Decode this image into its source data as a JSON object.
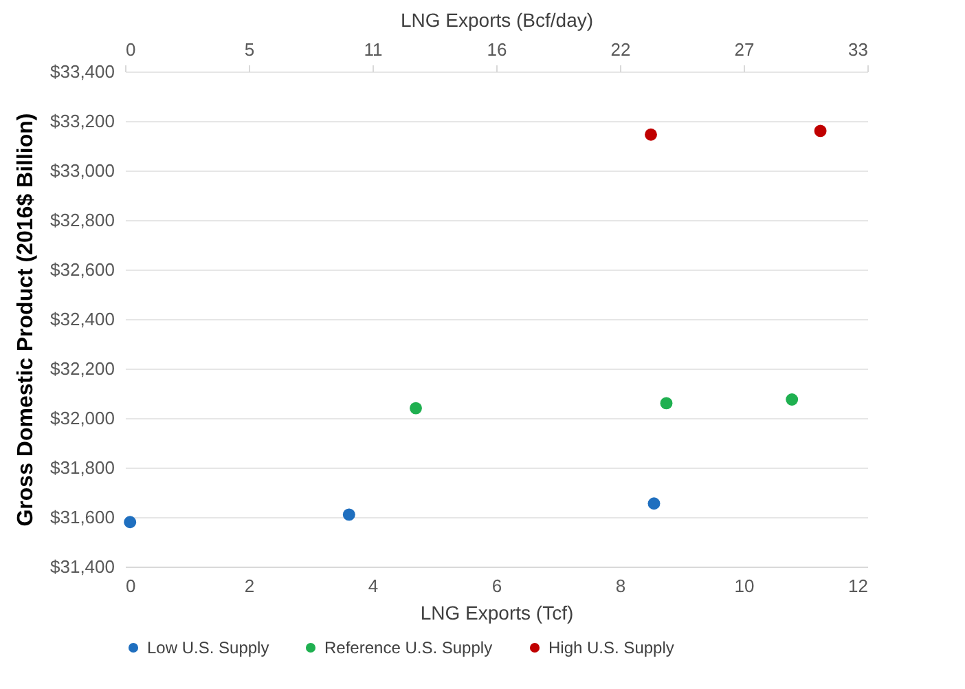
{
  "chart_data": {
    "type": "scatter",
    "xlabel": "LNG Exports (Tcf)",
    "ylabel": "Gross Domestic Product (2016$ Billion)",
    "x2label": "LNG Exports (Bcf/day)",
    "xlim": [
      0,
      12
    ],
    "xticks": [
      0,
      2,
      4,
      6,
      8,
      10,
      12
    ],
    "x2lim": [
      0,
      32.88
    ],
    "x2ticks": [
      0,
      {
        "value": 5.48,
        "label": "5"
      },
      {
        "value": 10.96,
        "label": "11"
      },
      {
        "value": 16.44,
        "label": "16"
      },
      {
        "value": 21.92,
        "label": "22"
      },
      {
        "value": 27.4,
        "label": "27"
      },
      {
        "value": 32.88,
        "label": "33"
      }
    ],
    "ylim": [
      31400,
      33400
    ],
    "yticks": [
      {
        "value": 31400,
        "label": "$31,400"
      },
      {
        "value": 31600,
        "label": "$31,600"
      },
      {
        "value": 31800,
        "label": "$31,800"
      },
      {
        "value": 32000,
        "label": "$32,000"
      },
      {
        "value": 32200,
        "label": "$32,200"
      },
      {
        "value": 32400,
        "label": "$32,400"
      },
      {
        "value": 32600,
        "label": "$32,600"
      },
      {
        "value": 32800,
        "label": "$32,800"
      },
      {
        "value": 33000,
        "label": "$33,000"
      },
      {
        "value": 33200,
        "label": "$33,200"
      },
      {
        "value": 33400,
        "label": "$33,400"
      }
    ],
    "grid": "y",
    "legend": "bottom",
    "marker": "circle",
    "series": [
      {
        "name": "Low U.S. Supply",
        "color": "#1f6fbf",
        "x": [
          0.08,
          3.62,
          8.55
        ],
        "values": [
          31580,
          31610,
          31655
        ]
      },
      {
        "name": "Reference U.S. Supply",
        "color": "#1fb050",
        "x": [
          4.7,
          8.75,
          10.78
        ],
        "values": [
          32040,
          32060,
          32075
        ]
      },
      {
        "name": "High U.S. Supply",
        "color": "#c00000",
        "x": [
          8.5,
          11.24
        ],
        "values": [
          33145,
          33160
        ]
      }
    ]
  }
}
